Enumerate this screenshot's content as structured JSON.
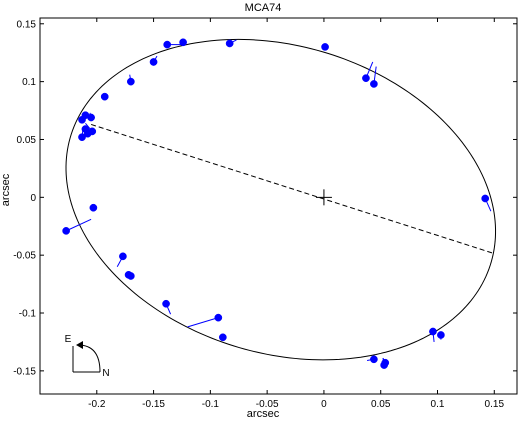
{
  "chart_data": {
    "type": "scatter",
    "title": "MCA74",
    "xlabel": "arcsec",
    "ylabel": "arcsec",
    "xlim": [
      -0.25,
      0.17
    ],
    "ylim": [
      -0.17,
      0.155
    ],
    "grid": false,
    "x_ticks": [
      -0.2,
      -0.15,
      -0.1,
      -0.05,
      0,
      0.05,
      0.1,
      0.15
    ],
    "x_tick_labels": [
      "-0.2",
      "-0.15",
      "-0.1",
      "-0.05",
      "0",
      "0.05",
      "0.1",
      "0.15"
    ],
    "y_ticks": [
      0.15,
      0.1,
      0.05,
      0,
      -0.05,
      -0.1,
      -0.15
    ],
    "y_tick_labels": [
      "0.15",
      "0.1",
      "0.05",
      "0",
      "-0.05",
      "-0.1",
      "-0.15"
    ],
    "orbit_ellipse": {
      "center": [
        -0.038,
        -0.002
      ],
      "semi_major": 0.193,
      "semi_minor": 0.133,
      "angle_deg": -16
    },
    "primary_star": [
      0,
      0
    ],
    "line_of_nodes": {
      "from": [
        -0.205,
        0.063
      ],
      "to": [
        0.148,
        -0.048
      ]
    },
    "observations": [
      {
        "x": -0.227,
        "y": -0.029,
        "ox": -0.205,
        "oy": -0.019
      },
      {
        "x": -0.203,
        "y": -0.009,
        "ox": -0.2,
        "oy": -0.01
      },
      {
        "x": -0.213,
        "y": 0.067,
        "ox": -0.209,
        "oy": 0.07
      },
      {
        "x": -0.21,
        "y": 0.071,
        "ox": -0.208,
        "oy": 0.072
      },
      {
        "x": -0.205,
        "y": 0.069,
        "ox": -0.206,
        "oy": 0.073
      },
      {
        "x": -0.213,
        "y": 0.052,
        "ox": -0.212,
        "oy": 0.061
      },
      {
        "x": -0.21,
        "y": 0.059,
        "ox": -0.211,
        "oy": 0.062
      },
      {
        "x": -0.208,
        "y": 0.055,
        "ox": -0.211,
        "oy": 0.062
      },
      {
        "x": -0.204,
        "y": 0.057,
        "ox": -0.21,
        "oy": 0.064
      },
      {
        "x": -0.193,
        "y": 0.087,
        "ox": -0.195,
        "oy": 0.085
      },
      {
        "x": -0.17,
        "y": 0.1,
        "ox": -0.171,
        "oy": 0.106
      },
      {
        "x": -0.15,
        "y": 0.117,
        "ox": -0.147,
        "oy": 0.122
      },
      {
        "x": -0.138,
        "y": 0.132,
        "ox": -0.126,
        "oy": 0.132
      },
      {
        "x": -0.124,
        "y": 0.134,
        "ox": -0.124,
        "oy": 0.134
      },
      {
        "x": -0.083,
        "y": 0.133,
        "ox": -0.077,
        "oy": 0.136
      },
      {
        "x": 0.001,
        "y": 0.13,
        "ox": 0.001,
        "oy": 0.131
      },
      {
        "x": 0.037,
        "y": 0.103,
        "ox": 0.043,
        "oy": 0.117
      },
      {
        "x": 0.044,
        "y": 0.098,
        "ox": 0.046,
        "oy": 0.113
      },
      {
        "x": 0.142,
        "y": -0.001,
        "ox": 0.147,
        "oy": -0.012
      },
      {
        "x": -0.177,
        "y": -0.051,
        "ox": -0.182,
        "oy": -0.06
      },
      {
        "x": -0.172,
        "y": -0.067,
        "ox": -0.174,
        "oy": -0.068
      },
      {
        "x": -0.17,
        "y": -0.068,
        "ox": -0.173,
        "oy": -0.068
      },
      {
        "x": -0.139,
        "y": -0.092,
        "ox": -0.135,
        "oy": -0.101
      },
      {
        "x": -0.093,
        "y": -0.104,
        "ox": -0.12,
        "oy": -0.112
      },
      {
        "x": -0.089,
        "y": -0.121,
        "ox": -0.091,
        "oy": -0.119
      },
      {
        "x": 0.044,
        "y": -0.14,
        "ox": 0.038,
        "oy": -0.141
      },
      {
        "x": 0.053,
        "y": -0.145,
        "ox": 0.052,
        "oy": -0.139
      },
      {
        "x": 0.054,
        "y": -0.143,
        "ox": 0.052,
        "oy": -0.139
      },
      {
        "x": 0.096,
        "y": -0.116,
        "ox": 0.097,
        "oy": -0.125
      },
      {
        "x": 0.103,
        "y": -0.119,
        "ox": 0.103,
        "oy": -0.123
      }
    ],
    "compass": {
      "east_label": "E",
      "north_label": "N"
    },
    "colors": {
      "points": "#0000ff",
      "residuals": "#0000ff",
      "orbit": "#000000",
      "axes": "#000000"
    }
  }
}
